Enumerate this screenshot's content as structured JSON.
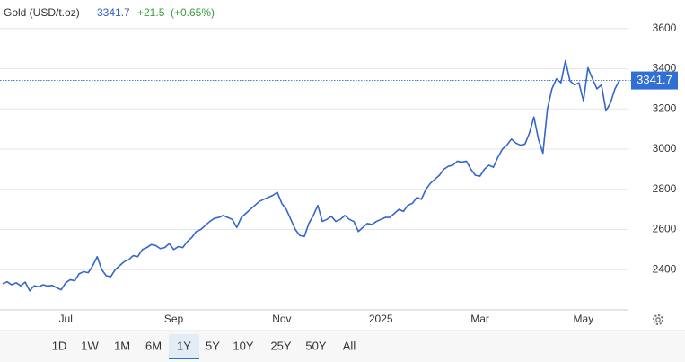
{
  "chart_data": {
    "type": "line",
    "title": "Gold (USD/t.oz)",
    "price": 3341.7,
    "change": "+21.5",
    "change_pct": "(+0.65%)",
    "categories": [
      null,
      null,
      null,
      null,
      null,
      null,
      null,
      null,
      null,
      null,
      null,
      null,
      null,
      null,
      "Jul",
      null,
      null,
      null,
      null,
      null,
      null,
      null,
      null,
      null,
      null,
      null,
      null,
      null,
      null,
      null,
      null,
      null,
      null,
      null,
      null,
      null,
      null,
      null,
      "Sep",
      null,
      null,
      null,
      null,
      null,
      null,
      null,
      null,
      null,
      null,
      null,
      null,
      null,
      null,
      null,
      null,
      null,
      null,
      null,
      null,
      null,
      null,
      null,
      "Nov",
      null,
      null,
      null,
      null,
      null,
      null,
      null,
      null,
      null,
      null,
      null,
      null,
      null,
      null,
      null,
      null,
      null,
      null,
      null,
      null,
      null,
      "2025",
      null,
      null,
      null,
      null,
      null,
      null,
      null,
      null,
      null,
      null,
      null,
      null,
      null,
      null,
      null,
      null,
      null,
      null,
      null,
      null,
      null,
      "Mar",
      null,
      null,
      null,
      null,
      null,
      null,
      null,
      null,
      null,
      null,
      null,
      null,
      null,
      null,
      null,
      null,
      null,
      null,
      null,
      null,
      null,
      null,
      "May",
      null,
      null,
      null,
      null,
      null,
      null,
      null,
      null
    ],
    "series": [
      {
        "name": "Gold",
        "color": "#3366cc",
        "values": [
          2330,
          2340,
          2325,
          2335,
          2320,
          2338,
          2295,
          2320,
          2315,
          2325,
          2318,
          2322,
          2310,
          2300,
          2335,
          2350,
          2345,
          2380,
          2390,
          2385,
          2420,
          2465,
          2400,
          2370,
          2365,
          2400,
          2420,
          2440,
          2450,
          2470,
          2465,
          2500,
          2510,
          2525,
          2520,
          2505,
          2510,
          2530,
          2500,
          2515,
          2510,
          2540,
          2560,
          2590,
          2600,
          2620,
          2640,
          2655,
          2660,
          2670,
          2660,
          2650,
          2610,
          2660,
          2680,
          2700,
          2720,
          2740,
          2750,
          2760,
          2770,
          2785,
          2730,
          2700,
          2650,
          2600,
          2570,
          2565,
          2630,
          2670,
          2720,
          2640,
          2650,
          2665,
          2640,
          2650,
          2670,
          2650,
          2640,
          2590,
          2610,
          2630,
          2625,
          2640,
          2650,
          2660,
          2660,
          2680,
          2700,
          2690,
          2720,
          2730,
          2760,
          2750,
          2800,
          2830,
          2850,
          2870,
          2900,
          2915,
          2920,
          2940,
          2935,
          2940,
          2900,
          2870,
          2865,
          2900,
          2920,
          2910,
          2960,
          3000,
          3020,
          3050,
          3030,
          3020,
          3025,
          3080,
          3160,
          3050,
          2980,
          3200,
          3300,
          3350,
          3330,
          3440,
          3340,
          3320,
          3330,
          3240,
          3405,
          3350,
          3300,
          3320,
          3190,
          3230,
          3300,
          3341.7
        ]
      }
    ],
    "ylim": [
      2200,
      3650
    ],
    "yticks": [
      2400,
      2600,
      2800,
      3000,
      3200,
      3400,
      3600
    ],
    "grid": true,
    "ranges": [
      "1D",
      "1W",
      "1M",
      "6M",
      "1Y",
      "5Y",
      "10Y",
      "25Y",
      "50Y",
      "All"
    ],
    "selected_range": "1Y"
  }
}
